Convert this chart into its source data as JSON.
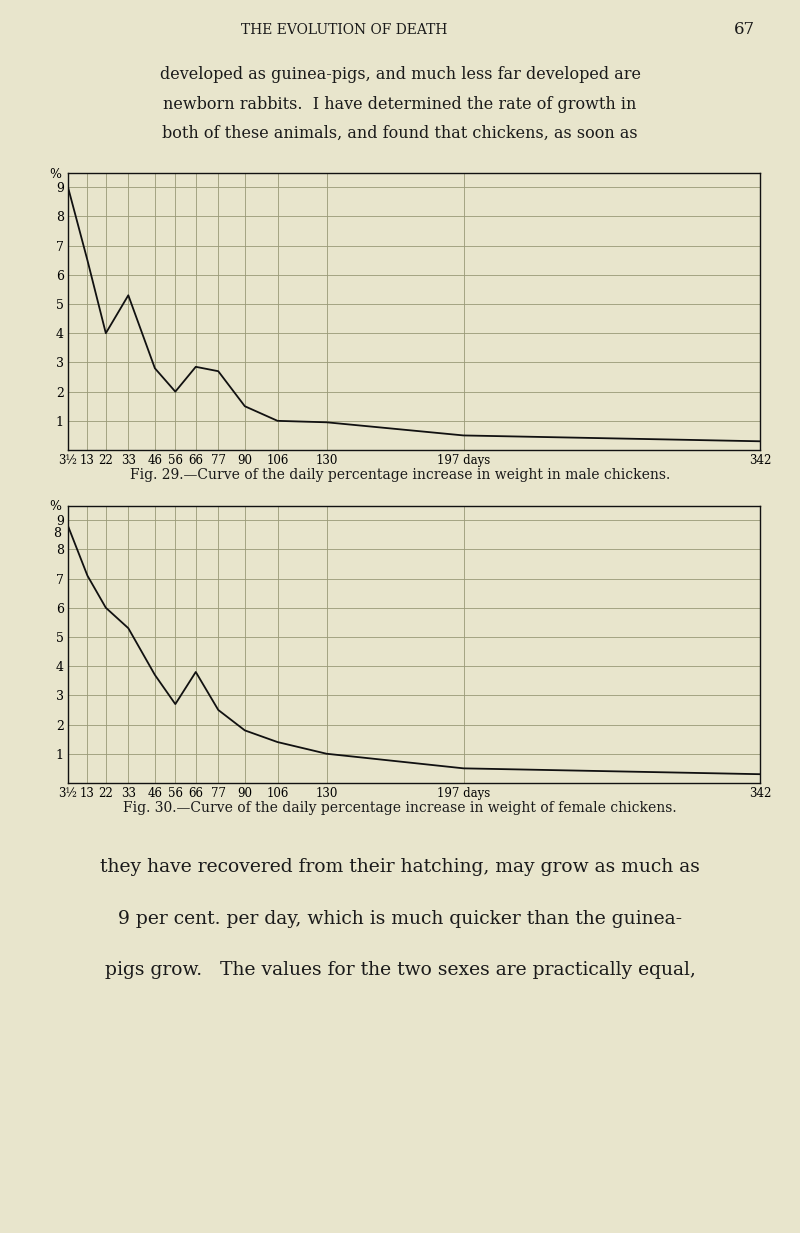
{
  "page_bg": "#e8e5cc",
  "chart_bg": "#e8e5cc",
  "header_text": "THE EVOLUTION OF DEATH",
  "page_number": "67",
  "para1_lines": [
    "developed as guinea-pigs, and much less far developed are",
    "newborn rabbits.  I have determined the rate of growth in",
    "both of these animals, and found that chickens, as soon as"
  ],
  "fig29_caption": "Fig. 29.—Curve of the daily percentage increase in weight in male chickens.",
  "fig30_caption": "Fig. 30.—Curve of the daily percentage increase in weight of female chickens.",
  "para2_lines": [
    "they have recovered from their hatching, may grow as much as",
    "9 per cent. per day, which is much quicker than the guinea-",
    "pigs grow.   The values for the two sexes are practically equal,"
  ],
  "xtick_labels": [
    "3½",
    "13",
    "22",
    "33",
    "46",
    "56",
    "66",
    "77",
    "90",
    "106",
    "130",
    "197 days",
    "342"
  ],
  "xtick_positions": [
    3.5,
    13,
    22,
    33,
    46,
    56,
    66,
    77,
    90,
    106,
    130,
    197,
    342
  ],
  "ytick_positions": [
    1,
    2,
    3,
    4,
    5,
    6,
    7,
    8,
    9
  ],
  "ytick_labels": [
    "1",
    "2",
    "3",
    "4",
    "5",
    "6",
    "7",
    "8",
    "9"
  ],
  "male_x": [
    3.5,
    13,
    22,
    33,
    46,
    56,
    66,
    77,
    90,
    106,
    130,
    197,
    342
  ],
  "male_y": [
    9.0,
    6.5,
    4.0,
    5.3,
    2.8,
    2.0,
    2.85,
    2.7,
    1.5,
    1.0,
    0.95,
    0.5,
    0.3
  ],
  "female_x": [
    3.5,
    13,
    22,
    33,
    46,
    56,
    66,
    77,
    90,
    106,
    130,
    197,
    342
  ],
  "female_y": [
    8.8,
    7.1,
    6.0,
    5.3,
    3.7,
    2.7,
    3.8,
    2.5,
    1.8,
    1.4,
    1.0,
    0.5,
    0.3
  ],
  "line_color": "#111111",
  "grid_color": "#999977",
  "border_color": "#111111",
  "figsize": [
    8.0,
    12.33
  ]
}
